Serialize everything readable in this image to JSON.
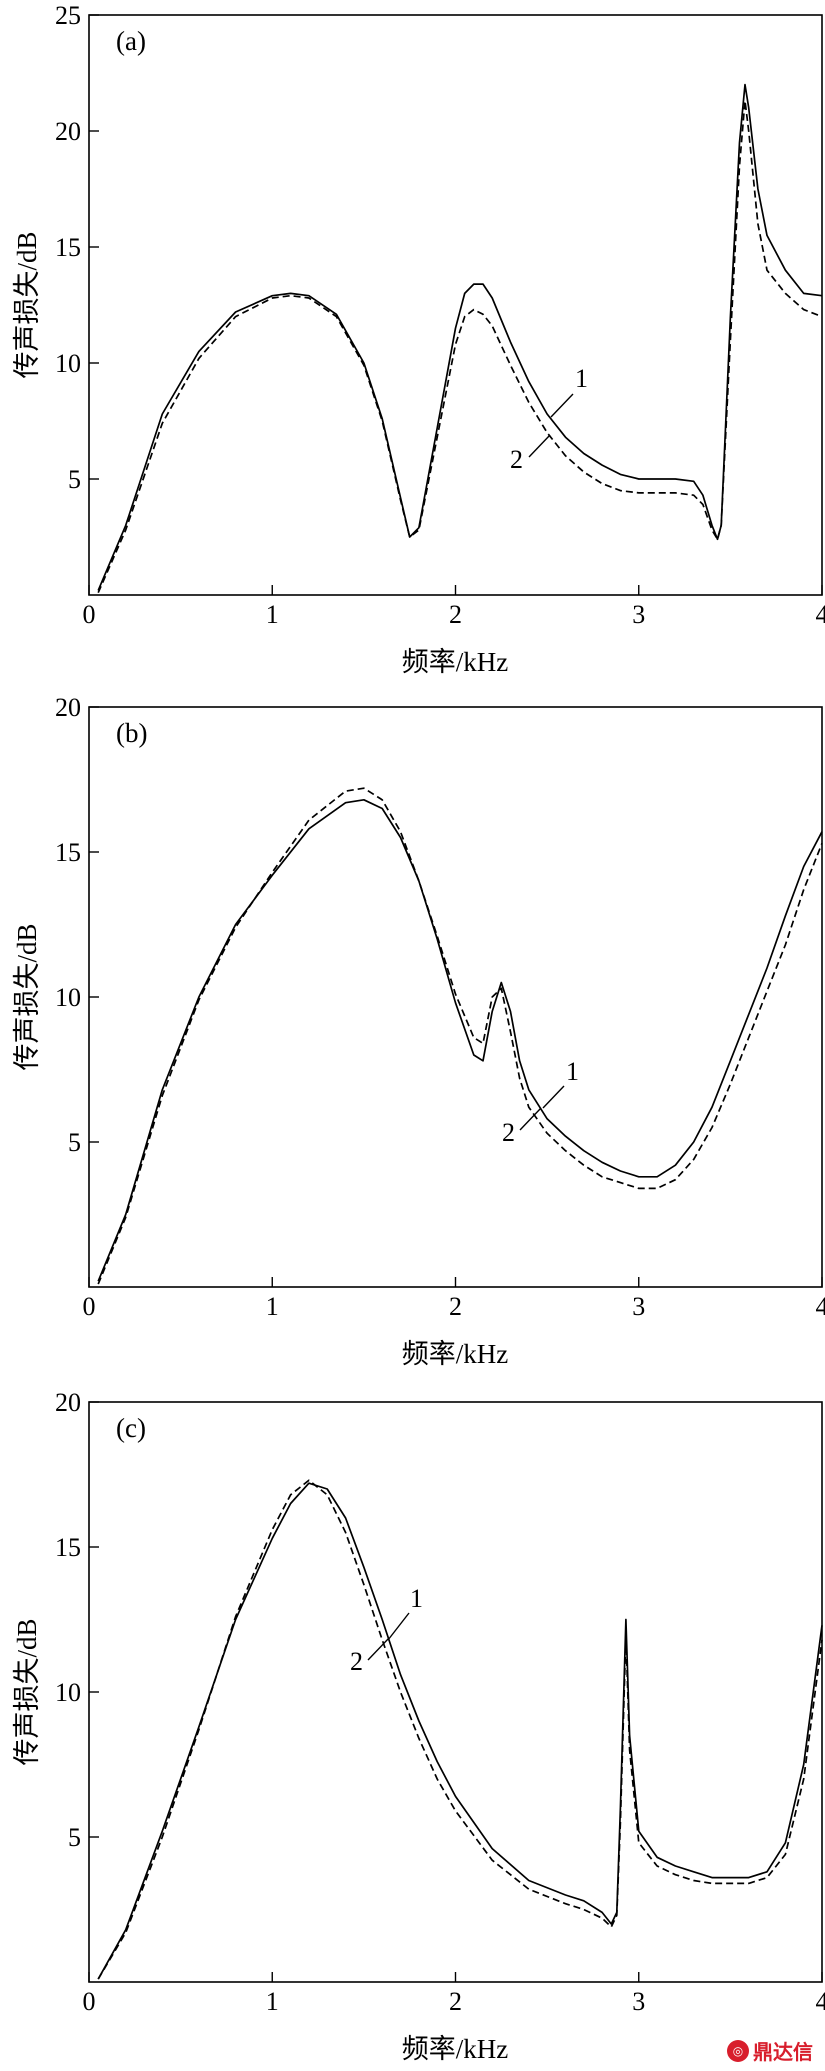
{
  "watermark": {
    "text": "鼎达信",
    "color": "#d81e2c"
  },
  "chart_data": [
    {
      "type": "line",
      "panel_label": "(a)",
      "xlabel": "频率/kHz",
      "ylabel": "传声损失/dB",
      "xlim": [
        0,
        4
      ],
      "ylim": [
        0,
        25
      ],
      "xticks": [
        "0",
        "1",
        "2",
        "3",
        "4"
      ],
      "yticks": [
        "5",
        "10",
        "15",
        "20",
        "25"
      ],
      "ytick_values": [
        5,
        10,
        15,
        20,
        25
      ],
      "series": [
        {
          "name": "1",
          "style": "solid",
          "x": [
            0.05,
            0.2,
            0.4,
            0.6,
            0.8,
            1.0,
            1.1,
            1.2,
            1.35,
            1.5,
            1.6,
            1.7,
            1.75,
            1.8,
            1.9,
            2.0,
            2.05,
            2.1,
            2.15,
            2.2,
            2.3,
            2.4,
            2.5,
            2.6,
            2.7,
            2.8,
            2.9,
            3.0,
            3.2,
            3.3,
            3.35,
            3.4,
            3.43,
            3.45,
            3.5,
            3.55,
            3.58,
            3.6,
            3.65,
            3.7,
            3.8,
            3.9,
            4.0
          ],
          "y": [
            0.2,
            3.0,
            7.8,
            10.5,
            12.2,
            12.9,
            13.0,
            12.9,
            12.1,
            10.0,
            7.6,
            4.2,
            2.5,
            2.9,
            7.2,
            11.5,
            13.0,
            13.4,
            13.4,
            12.8,
            10.9,
            9.2,
            7.8,
            6.8,
            6.1,
            5.6,
            5.2,
            5.0,
            5.0,
            4.9,
            4.3,
            3.0,
            2.4,
            3.0,
            12.0,
            19.5,
            22.0,
            21.0,
            17.5,
            15.5,
            14.0,
            13.0,
            12.9
          ]
        },
        {
          "name": "2",
          "style": "dashed",
          "x": [
            0.05,
            0.2,
            0.4,
            0.6,
            0.8,
            1.0,
            1.1,
            1.2,
            1.35,
            1.5,
            1.6,
            1.7,
            1.75,
            1.8,
            1.9,
            2.0,
            2.05,
            2.1,
            2.15,
            2.2,
            2.3,
            2.4,
            2.5,
            2.6,
            2.7,
            2.8,
            2.9,
            3.0,
            3.2,
            3.3,
            3.35,
            3.4,
            3.43,
            3.45,
            3.5,
            3.55,
            3.58,
            3.6,
            3.65,
            3.7,
            3.8,
            3.9,
            4.0
          ],
          "y": [
            0.1,
            2.8,
            7.4,
            10.2,
            12.0,
            12.8,
            12.9,
            12.8,
            12.0,
            9.9,
            7.5,
            4.1,
            2.5,
            2.8,
            6.8,
            10.8,
            12.0,
            12.3,
            12.1,
            11.6,
            9.9,
            8.3,
            7.0,
            6.0,
            5.3,
            4.8,
            4.5,
            4.4,
            4.4,
            4.3,
            3.9,
            2.8,
            2.4,
            3.0,
            11.0,
            18.5,
            21.3,
            20.0,
            16.0,
            14.0,
            13.0,
            12.3,
            12.0
          ]
        }
      ]
    },
    {
      "type": "line",
      "panel_label": "(b)",
      "xlabel": "频率/kHz",
      "ylabel": "传声损失/dB",
      "xlim": [
        0,
        4
      ],
      "ylim": [
        0,
        20
      ],
      "xticks": [
        "0",
        "1",
        "2",
        "3",
        "4"
      ],
      "yticks": [
        "5",
        "10",
        "15",
        "20"
      ],
      "ytick_values": [
        5,
        10,
        15,
        20
      ],
      "series": [
        {
          "name": "1",
          "style": "solid",
          "x": [
            0.05,
            0.2,
            0.4,
            0.6,
            0.8,
            1.0,
            1.2,
            1.4,
            1.5,
            1.6,
            1.7,
            1.8,
            1.9,
            2.0,
            2.1,
            2.15,
            2.2,
            2.25,
            2.3,
            2.35,
            2.4,
            2.5,
            2.6,
            2.7,
            2.8,
            2.9,
            3.0,
            3.1,
            3.2,
            3.3,
            3.4,
            3.5,
            3.6,
            3.7,
            3.8,
            3.9,
            4.0
          ],
          "y": [
            0.2,
            2.5,
            6.8,
            10.0,
            12.5,
            14.2,
            15.8,
            16.7,
            16.8,
            16.5,
            15.5,
            14.0,
            12.0,
            9.8,
            8.0,
            7.8,
            9.5,
            10.5,
            9.5,
            7.8,
            6.8,
            5.8,
            5.2,
            4.7,
            4.3,
            4.0,
            3.8,
            3.8,
            4.2,
            5.0,
            6.2,
            7.8,
            9.4,
            11.0,
            12.8,
            14.5,
            15.7
          ]
        },
        {
          "name": "2",
          "style": "dashed",
          "x": [
            0.05,
            0.2,
            0.4,
            0.6,
            0.8,
            1.0,
            1.2,
            1.4,
            1.5,
            1.6,
            1.7,
            1.8,
            1.9,
            2.0,
            2.1,
            2.15,
            2.2,
            2.25,
            2.3,
            2.35,
            2.4,
            2.5,
            2.6,
            2.7,
            2.8,
            2.9,
            3.0,
            3.1,
            3.2,
            3.3,
            3.4,
            3.5,
            3.6,
            3.7,
            3.8,
            3.9,
            4.0
          ],
          "y": [
            0.1,
            2.4,
            6.6,
            9.9,
            12.4,
            14.3,
            16.1,
            17.1,
            17.2,
            16.8,
            15.7,
            14.0,
            12.1,
            10.1,
            8.6,
            8.4,
            10.0,
            10.3,
            8.8,
            7.2,
            6.2,
            5.3,
            4.7,
            4.2,
            3.8,
            3.6,
            3.4,
            3.4,
            3.7,
            4.4,
            5.5,
            7.0,
            8.6,
            10.2,
            11.8,
            13.7,
            15.3
          ]
        }
      ]
    },
    {
      "type": "line",
      "panel_label": "(c)",
      "xlabel": "频率/kHz",
      "ylabel": "传声损失/dB",
      "xlim": [
        0,
        4
      ],
      "ylim": [
        0,
        20
      ],
      "xticks": [
        "0",
        "1",
        "2",
        "3",
        "4"
      ],
      "yticks": [
        "5",
        "10",
        "15",
        "20"
      ],
      "ytick_values": [
        5,
        10,
        15,
        20
      ],
      "series": [
        {
          "name": "1",
          "style": "solid",
          "x": [
            0.05,
            0.2,
            0.4,
            0.6,
            0.8,
            1.0,
            1.1,
            1.2,
            1.3,
            1.4,
            1.5,
            1.6,
            1.7,
            1.8,
            1.9,
            2.0,
            2.2,
            2.4,
            2.6,
            2.7,
            2.8,
            2.85,
            2.88,
            2.9,
            2.93,
            2.95,
            3.0,
            3.1,
            3.2,
            3.3,
            3.4,
            3.5,
            3.6,
            3.7,
            3.8,
            3.9,
            4.0
          ],
          "y": [
            0.1,
            1.8,
            5.2,
            8.8,
            12.5,
            15.3,
            16.5,
            17.2,
            17.0,
            16.0,
            14.3,
            12.5,
            10.6,
            9.0,
            7.6,
            6.4,
            4.6,
            3.5,
            3.0,
            2.8,
            2.4,
            2.0,
            2.4,
            6.0,
            12.5,
            8.5,
            5.2,
            4.3,
            4.0,
            3.8,
            3.6,
            3.6,
            3.6,
            3.8,
            4.8,
            7.5,
            12.3
          ]
        },
        {
          "name": "2",
          "style": "dashed",
          "x": [
            0.05,
            0.2,
            0.4,
            0.6,
            0.8,
            1.0,
            1.1,
            1.2,
            1.3,
            1.4,
            1.5,
            1.6,
            1.7,
            1.8,
            1.9,
            2.0,
            2.2,
            2.4,
            2.6,
            2.7,
            2.8,
            2.85,
            2.88,
            2.9,
            2.93,
            2.95,
            3.0,
            3.1,
            3.2,
            3.3,
            3.4,
            3.5,
            3.6,
            3.7,
            3.8,
            3.9,
            4.0
          ],
          "y": [
            0.1,
            1.7,
            5.0,
            8.7,
            12.6,
            15.6,
            16.8,
            17.3,
            16.8,
            15.5,
            13.7,
            11.8,
            10.0,
            8.4,
            7.0,
            5.9,
            4.2,
            3.2,
            2.7,
            2.5,
            2.2,
            1.9,
            2.3,
            5.5,
            12.0,
            8.0,
            4.8,
            4.0,
            3.7,
            3.5,
            3.4,
            3.4,
            3.4,
            3.6,
            4.4,
            7.0,
            11.8
          ]
        }
      ]
    }
  ]
}
